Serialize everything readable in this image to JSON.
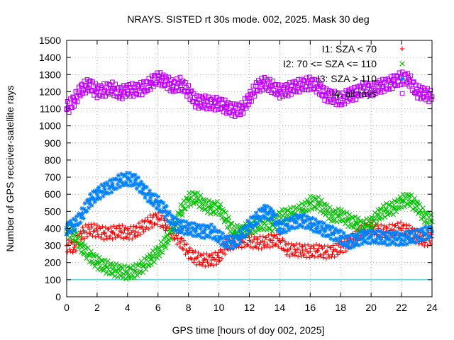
{
  "chart_data": {
    "type": "scatter",
    "title": "NRAYS. SISTED rt 30s mode. 002, 2025. Mask 30 deg",
    "xlabel": "GPS time [hours of doy 002, 2025]",
    "ylabel": "Number of GPS receiver-satellite rays",
    "xlim": [
      0,
      24
    ],
    "ylim": [
      0,
      1500
    ],
    "xticks": [
      0,
      2,
      4,
      6,
      8,
      10,
      12,
      14,
      16,
      18,
      20,
      22,
      24
    ],
    "yticks": [
      0,
      100,
      200,
      300,
      400,
      500,
      600,
      700,
      800,
      900,
      1000,
      1100,
      1200,
      1300,
      1400,
      1500
    ],
    "grid": true,
    "legend_position": "top-right",
    "threshold_line": {
      "y": 100,
      "color": "#00c0c0"
    },
    "series": [
      {
        "name": "I1: SZA < 70",
        "color": "#ff0000",
        "marker": "+",
        "x": [
          0,
          0.5,
          1,
          1.5,
          2,
          2.5,
          3,
          3.5,
          4,
          4.5,
          5,
          5.5,
          6,
          6.5,
          7,
          7.5,
          8,
          8.5,
          9,
          9.5,
          10,
          10.5,
          11,
          11.5,
          12,
          12.5,
          13,
          13.5,
          14,
          14.5,
          15,
          15.5,
          16,
          16.5,
          17,
          17.5,
          18,
          18.5,
          19,
          19.5,
          20,
          20.5,
          21,
          21.5,
          22,
          22.5,
          23,
          23.5,
          24
        ],
        "y": [
          300,
          290,
          370,
          395,
          385,
          370,
          375,
          385,
          370,
          380,
          410,
          440,
          460,
          420,
          370,
          320,
          260,
          225,
          215,
          215,
          230,
          300,
          320,
          325,
          330,
          315,
          320,
          330,
          330,
          275,
          275,
          270,
          265,
          270,
          260,
          265,
          290,
          310,
          350,
          390,
          405,
          385,
          380,
          390,
          400,
          380,
          355,
          330,
          345
        ]
      },
      {
        "name": "I2: 70 <= SZA <= 110",
        "color": "#00c000",
        "marker": "x",
        "x": [
          0,
          0.5,
          1,
          1.5,
          2,
          2.5,
          3,
          3.5,
          4,
          4.5,
          5,
          5.5,
          6,
          6.5,
          7,
          7.5,
          8,
          8.5,
          9,
          9.5,
          10,
          10.5,
          11,
          11.5,
          12,
          12.5,
          13,
          13.5,
          14,
          14.5,
          15,
          15.5,
          16,
          16.5,
          17,
          17.5,
          18,
          18.5,
          19,
          19.5,
          20,
          20.5,
          21,
          21.5,
          22,
          22.5,
          23,
          23.5,
          24
        ],
        "y": [
          400,
          360,
          290,
          240,
          200,
          180,
          160,
          150,
          140,
          150,
          180,
          220,
          260,
          320,
          400,
          500,
          570,
          580,
          540,
          520,
          520,
          450,
          380,
          380,
          400,
          420,
          430,
          420,
          470,
          480,
          490,
          510,
          550,
          550,
          510,
          470,
          480,
          450,
          430,
          410,
          430,
          480,
          510,
          520,
          560,
          570,
          530,
          470,
          440
        ]
      },
      {
        "name": "I3: SZA > 110",
        "color": "#0080ff",
        "marker": "*",
        "x": [
          0,
          0.5,
          1,
          1.5,
          2,
          2.5,
          3,
          3.5,
          4,
          4.5,
          5,
          5.5,
          6,
          6.5,
          7,
          7.5,
          8,
          8.5,
          9,
          9.5,
          10,
          10.5,
          11,
          11.5,
          12,
          12.5,
          13,
          13.5,
          14,
          14.5,
          15,
          15.5,
          16,
          16.5,
          17,
          17.5,
          18,
          18.5,
          19,
          19.5,
          20,
          20.5,
          21,
          21.5,
          22,
          22.5,
          23,
          23.5,
          24
        ],
        "y": [
          400,
          420,
          480,
          560,
          600,
          630,
          650,
          680,
          690,
          680,
          630,
          580,
          550,
          500,
          430,
          410,
          400,
          390,
          380,
          385,
          350,
          320,
          320,
          360,
          420,
          460,
          500,
          480,
          400,
          420,
          440,
          445,
          430,
          410,
          390,
          370,
          350,
          320,
          330,
          350,
          350,
          350,
          340,
          345,
          335,
          350,
          355,
          370,
          380
        ]
      },
      {
        "name": "I4: all rays",
        "color": "#c000ff",
        "marker": "square",
        "x": [
          0,
          0.5,
          1,
          1.5,
          2,
          2.5,
          3,
          3.5,
          4,
          4.5,
          5,
          5.5,
          6,
          6.5,
          7,
          7.5,
          8,
          8.5,
          9,
          9.5,
          10,
          10.5,
          11,
          11.5,
          12,
          12.5,
          13,
          13.5,
          14,
          14.5,
          15,
          15.5,
          16,
          16.5,
          17,
          17.5,
          18,
          18.5,
          19,
          19.5,
          20,
          20.5,
          21,
          21.5,
          22,
          22.5,
          23,
          23.5,
          24
        ],
        "y": [
          1100,
          1150,
          1220,
          1240,
          1200,
          1210,
          1220,
          1190,
          1210,
          1210,
          1220,
          1250,
          1280,
          1260,
          1230,
          1250,
          1200,
          1140,
          1140,
          1130,
          1130,
          1110,
          1090,
          1100,
          1160,
          1230,
          1250,
          1230,
          1200,
          1210,
          1230,
          1240,
          1250,
          1230,
          1180,
          1170,
          1150,
          1180,
          1190,
          1220,
          1210,
          1230,
          1240,
          1260,
          1280,
          1270,
          1200,
          1190,
          1170
        ]
      }
    ]
  }
}
